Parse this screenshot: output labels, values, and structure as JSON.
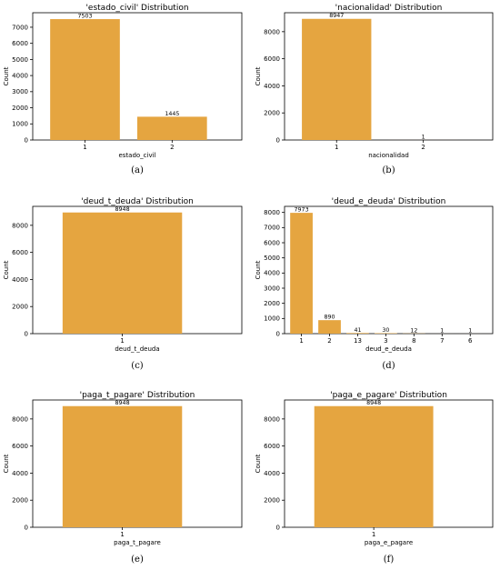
{
  "chart_data": [
    {
      "type": "bar",
      "panel_label": "(a)",
      "title": "'estado_civil' Distribution",
      "xlabel": "estado_civil",
      "ylabel": "Count",
      "categories": [
        "1",
        "2"
      ],
      "values": [
        7503,
        1445
      ],
      "data_labels": [
        "7503",
        "1445"
      ],
      "ylim": [
        0,
        7900
      ],
      "yticks": [
        0,
        1000,
        2000,
        3000,
        4000,
        5000,
        6000,
        7000
      ],
      "bar_color": "#E5A540",
      "grid": false
    },
    {
      "type": "bar",
      "panel_label": "(b)",
      "title": "'nacionalidad' Distribution",
      "xlabel": "nacionalidad",
      "ylabel": "Count",
      "categories": [
        "1",
        "2"
      ],
      "values": [
        8947,
        1
      ],
      "data_labels": [
        "8947",
        "1"
      ],
      "ylim": [
        0,
        9400
      ],
      "yticks": [
        0,
        2000,
        4000,
        6000,
        8000
      ],
      "bar_color": "#E5A540",
      "grid": false
    },
    {
      "type": "bar",
      "panel_label": "(c)",
      "title": "'deud_t_deuda' Distribution",
      "xlabel": "deud_t_deuda",
      "ylabel": "Count",
      "categories": [
        "1"
      ],
      "values": [
        8948
      ],
      "data_labels": [
        "8948"
      ],
      "ylim": [
        0,
        9400
      ],
      "yticks": [
        0,
        2000,
        4000,
        6000,
        8000
      ],
      "bar_color": "#E5A540",
      "grid": false
    },
    {
      "type": "bar",
      "panel_label": "(d)",
      "title": "'deud_e_deuda' Distribution",
      "xlabel": "deud_e_deuda",
      "ylabel": "Count",
      "categories": [
        "1",
        "2",
        "13",
        "3",
        "8",
        "7",
        "6"
      ],
      "values": [
        7973,
        890,
        41,
        30,
        12,
        1,
        1
      ],
      "data_labels": [
        "7973",
        "890",
        "41",
        "30",
        "12",
        "1",
        "1"
      ],
      "ylim": [
        0,
        8400
      ],
      "yticks": [
        0,
        1000,
        2000,
        3000,
        4000,
        5000,
        6000,
        7000,
        8000
      ],
      "bar_color": "#E5A540",
      "grid": false
    },
    {
      "type": "bar",
      "panel_label": "(e)",
      "title": "'paga_t_pagare' Distribution",
      "xlabel": "paga_t_pagare",
      "ylabel": "Count",
      "categories": [
        "1"
      ],
      "values": [
        8948
      ],
      "data_labels": [
        "8948"
      ],
      "ylim": [
        0,
        9400
      ],
      "yticks": [
        0,
        2000,
        4000,
        6000,
        8000
      ],
      "bar_color": "#E5A540",
      "grid": false
    },
    {
      "type": "bar",
      "panel_label": "(f)",
      "title": "'paga_e_pagare' Distribution",
      "xlabel": "paga_e_pagare",
      "ylabel": "Count",
      "categories": [
        "1"
      ],
      "values": [
        8948
      ],
      "data_labels": [
        "8948"
      ],
      "ylim": [
        0,
        9400
      ],
      "yticks": [
        0,
        2000,
        4000,
        6000,
        8000
      ],
      "bar_color": "#E5A540",
      "grid": false
    }
  ]
}
